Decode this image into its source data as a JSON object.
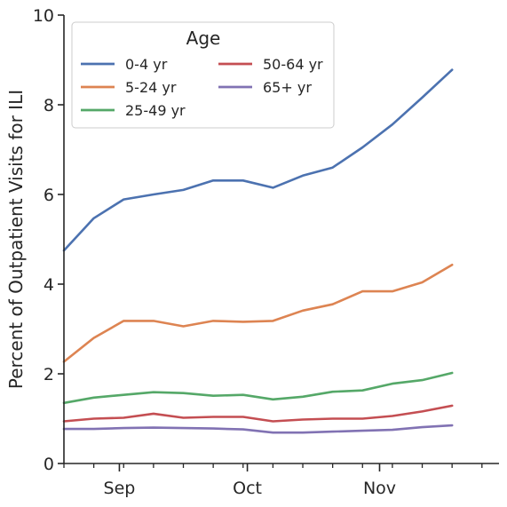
{
  "chart_data": {
    "type": "line",
    "title": "",
    "xlabel": "",
    "ylabel": "Percent of Outpatient Visits for ILI",
    "ylim": [
      0,
      10
    ],
    "yticks": [
      0,
      2,
      4,
      6,
      8,
      10
    ],
    "x": [
      "2023-08-19",
      "2023-08-26",
      "2023-09-02",
      "2023-09-09",
      "2023-09-16",
      "2023-09-23",
      "2023-09-30",
      "2023-10-07",
      "2023-10-14",
      "2023-10-21",
      "2023-10-28",
      "2023-11-04",
      "2023-11-11",
      "2023-11-18"
    ],
    "xlim": [
      "2023-08-19",
      "2023-11-29"
    ],
    "major_ticks": [
      {
        "date": "2023-09-01",
        "label": "Sep"
      },
      {
        "date": "2023-10-01",
        "label": "Oct"
      },
      {
        "date": "2023-11-01",
        "label": "Nov"
      }
    ],
    "minor_ticks": [
      "2023-08-19",
      "2023-08-26",
      "2023-09-02",
      "2023-09-09",
      "2023-09-16",
      "2023-09-23",
      "2023-09-30",
      "2023-10-07",
      "2023-10-14",
      "2023-10-21",
      "2023-10-28",
      "2023-11-04",
      "2023-11-11",
      "2023-11-18",
      "2023-11-25"
    ],
    "grid": false,
    "legend": {
      "title": "Age",
      "position": "top-left",
      "columns": 2
    },
    "series": [
      {
        "name": "0-4 yr",
        "color": "#4c72b0",
        "values": [
          4.75,
          5.47,
          5.89,
          6.0,
          6.1,
          6.31,
          6.31,
          6.15,
          6.42,
          6.6,
          7.05,
          7.56,
          8.16,
          8.78
        ]
      },
      {
        "name": "5-24 yr",
        "color": "#dd8452",
        "values": [
          2.27,
          2.8,
          3.18,
          3.18,
          3.06,
          3.18,
          3.16,
          3.18,
          3.41,
          3.55,
          3.84,
          3.84,
          4.04,
          4.43
        ]
      },
      {
        "name": "25-49 yr",
        "color": "#55a868",
        "values": [
          1.35,
          1.47,
          1.53,
          1.59,
          1.57,
          1.51,
          1.53,
          1.43,
          1.49,
          1.6,
          1.63,
          1.78,
          1.86,
          2.02
        ]
      },
      {
        "name": "50-64 yr",
        "color": "#c44e52",
        "values": [
          0.94,
          1.0,
          1.02,
          1.11,
          1.02,
          1.04,
          1.04,
          0.94,
          0.98,
          1.0,
          1.0,
          1.06,
          1.16,
          1.29
        ]
      },
      {
        "name": "65+ yr",
        "color": "#8172b3",
        "values": [
          0.77,
          0.77,
          0.79,
          0.8,
          0.79,
          0.78,
          0.76,
          0.69,
          0.69,
          0.71,
          0.73,
          0.75,
          0.81,
          0.85
        ]
      }
    ]
  }
}
